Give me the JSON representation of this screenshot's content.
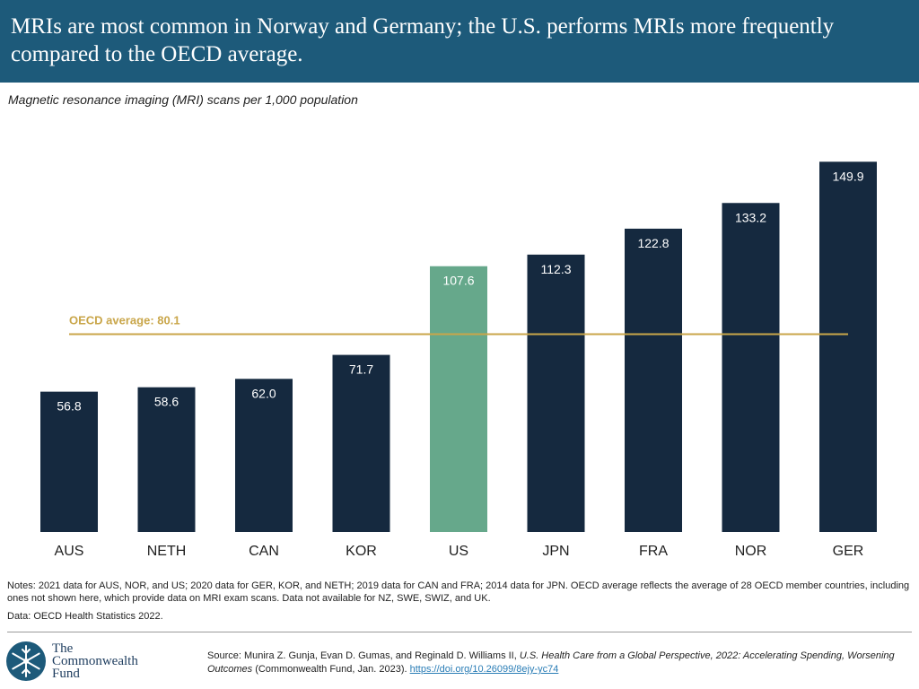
{
  "header": {
    "title": "MRIs are most common in Norway and Germany; the U.S. performs MRIs more frequently compared to the OECD average."
  },
  "chart_data": {
    "type": "bar",
    "title": "MRIs are most common in Norway and Germany; the U.S. performs MRIs more frequently compared to the OECD average.",
    "subtitle": "Magnetic resonance imaging (MRI) scans per 1,000 population",
    "categories": [
      "AUS",
      "NETH",
      "CAN",
      "KOR",
      "US",
      "JPN",
      "FRA",
      "NOR",
      "GER"
    ],
    "values": [
      56.8,
      58.6,
      62.0,
      71.7,
      107.6,
      112.3,
      122.8,
      133.2,
      149.9
    ],
    "value_labels": [
      "56.8",
      "58.6",
      "62.0",
      "71.7",
      "107.6",
      "112.3",
      "122.8",
      "133.2",
      "149.9"
    ],
    "highlight": "US",
    "colors": {
      "default": "#15293f",
      "highlight": "#66a88b",
      "reference": "#c9a64a"
    },
    "reference_line": {
      "label": "OECD average: 80.1",
      "value": 80.1
    },
    "ylim": [
      0,
      150
    ],
    "xlabel": "",
    "ylabel": "",
    "grid": false,
    "legend": "none"
  },
  "notes": "Notes: 2021 data for AUS, NOR, and US; 2020 data for GER, KOR, and NETH; 2019 data for CAN and FRA; 2014 data for JPN. OECD average reflects the average of 28 OECD member countries, including ones not shown here, which provide data on MRI exam scans. Data not available for NZ, SWE, SWIZ, and UK.",
  "data_source": "Data: OECD Health Statistics 2022.",
  "logo": {
    "text": "The\nCommonwealth\nFund",
    "icon": "snowflake-icon"
  },
  "source": {
    "prefix": "Source: Munira Z. Gunja, Evan D. Gumas, and Reginald D. Williams II, ",
    "report_title": "U.S. Health Care from a Global Perspective, 2022: Accelerating Spending, Worsening Outcomes",
    "suffix": " (Commonwealth Fund, Jan. 2023). ",
    "link": "https://doi.org/10.26099/8ejy-yc74"
  }
}
